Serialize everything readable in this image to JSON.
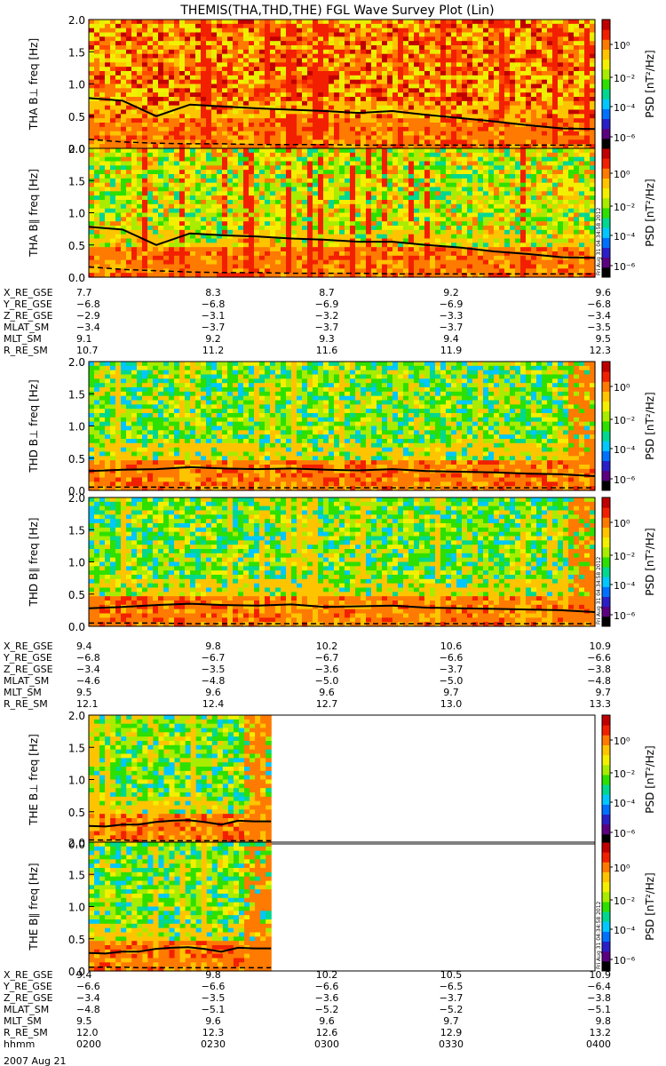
{
  "title": "THEMIS(THA,THD,THE) FGL Wave Survey Plot (Lin)",
  "stamp": "Fri Aug 31 04:34:58 2012",
  "colorbar": {
    "label": "PSD [nT²/Hz]",
    "ticks": [
      "10⁰",
      "10⁻²",
      "10⁻⁴",
      "10⁻⁶"
    ],
    "colors": [
      "#000000",
      "#5b0080",
      "#2a1fc8",
      "#0070ff",
      "#00c8ff",
      "#00d890",
      "#2de000",
      "#a8ec00",
      "#f2f000",
      "#ffc400",
      "#ff7a00",
      "#f22000",
      "#c00000"
    ]
  },
  "chart_data": [
    {
      "type": "heatmap",
      "panel": "THA B⊥",
      "ylabel": "THA B⊥  freq [Hz]",
      "ylim": [
        0,
        2.0
      ],
      "yticks": [
        "0.0",
        "0.5",
        "1.0",
        "1.5",
        "2.0"
      ],
      "xlim": [
        0,
        120
      ],
      "coverage": 1.0,
      "intensity": "high",
      "line_freq": [
        0.78,
        0.74,
        0.5,
        0.68,
        0.65,
        0.62,
        0.6,
        0.58,
        0.55,
        0.58,
        0.52,
        0.47,
        0.42,
        0.36,
        0.31,
        0.3
      ],
      "dashed_freq": [
        0.14,
        0.1,
        0.08,
        0.07,
        0.07,
        0.06,
        0.06,
        0.06,
        0.05,
        0.05,
        0.05,
        0.05,
        0.05,
        0.05,
        0.05,
        0.05
      ]
    },
    {
      "type": "heatmap",
      "panel": "THA B∥",
      "ylabel": "THA B∥  freq [Hz]",
      "ylim": [
        0,
        2.0
      ],
      "yticks": [
        "0.0",
        "0.5",
        "1.0",
        "1.5",
        "2.0"
      ],
      "xlim": [
        0,
        120
      ],
      "coverage": 1.0,
      "intensity": "mid",
      "line_freq": [
        0.78,
        0.74,
        0.5,
        0.68,
        0.65,
        0.63,
        0.6,
        0.58,
        0.55,
        0.55,
        0.5,
        0.46,
        0.4,
        0.36,
        0.31,
        0.3
      ],
      "dashed_freq": [
        0.16,
        0.12,
        0.1,
        0.08,
        0.07,
        0.07,
        0.06,
        0.06,
        0.06,
        0.05,
        0.05,
        0.05,
        0.05,
        0.05,
        0.05,
        0.05
      ]
    },
    {
      "type": "heatmap",
      "panel": "THD B⊥",
      "ylabel": "THD B⊥  freq [Hz]",
      "ylim": [
        0,
        2.0
      ],
      "yticks": [
        "0.0",
        "0.5",
        "1.0",
        "1.5",
        "2.0"
      ],
      "xlim": [
        0,
        120
      ],
      "coverage": 1.0,
      "intensity": "low",
      "line_freq": [
        0.3,
        0.32,
        0.33,
        0.36,
        0.34,
        0.33,
        0.34,
        0.32,
        0.31,
        0.33,
        0.3,
        0.29,
        0.28,
        0.26,
        0.25,
        0.22
      ],
      "dashed_freq": [
        0.05,
        0.05,
        0.05,
        0.04,
        0.04,
        0.04,
        0.04,
        0.04,
        0.04,
        0.04,
        0.04,
        0.04,
        0.04,
        0.04,
        0.04,
        0.04
      ]
    },
    {
      "type": "heatmap",
      "panel": "THD B∥",
      "ylabel": "THD B∥  freq [Hz]",
      "ylim": [
        0,
        2.0
      ],
      "yticks": [
        "0.0",
        "0.5",
        "1.0",
        "1.5",
        "2.0"
      ],
      "xlim": [
        0,
        120
      ],
      "coverage": 1.0,
      "intensity": "low",
      "line_freq": [
        0.28,
        0.3,
        0.33,
        0.35,
        0.33,
        0.32,
        0.34,
        0.3,
        0.31,
        0.32,
        0.29,
        0.28,
        0.27,
        0.26,
        0.25,
        0.22
      ],
      "dashed_freq": [
        0.05,
        0.05,
        0.05,
        0.04,
        0.04,
        0.04,
        0.04,
        0.04,
        0.04,
        0.04,
        0.04,
        0.04,
        0.04,
        0.04,
        0.04,
        0.04
      ]
    },
    {
      "type": "heatmap",
      "panel": "THE B⊥",
      "ylabel": "THE B⊥  freq [Hz]",
      "ylim": [
        0,
        2.0
      ],
      "yticks": [
        "0.0",
        "0.5",
        "1.0",
        "1.5",
        "2.0"
      ],
      "xlim": [
        0,
        120
      ],
      "coverage": 0.36,
      "intensity": "low",
      "line_freq": [
        0.28,
        0.27,
        0.3,
        0.3,
        0.34,
        0.36,
        0.37,
        0.34,
        0.3,
        0.36,
        0.35,
        0.35
      ],
      "dashed_freq": [
        0.06,
        0.06,
        0.06,
        0.05,
        0.05,
        0.05,
        0.05,
        0.05,
        0.05,
        0.05,
        0.05,
        0.05
      ]
    },
    {
      "type": "heatmap",
      "panel": "THE B∥",
      "ylabel": "THE B∥  freq [Hz]",
      "ylim": [
        0,
        2.0
      ],
      "yticks": [
        "0.0",
        "0.5",
        "1.0",
        "1.5",
        "2.0"
      ],
      "xlim": [
        0,
        120
      ],
      "coverage": 0.36,
      "intensity": "low",
      "line_freq": [
        0.28,
        0.27,
        0.3,
        0.3,
        0.34,
        0.36,
        0.37,
        0.34,
        0.3,
        0.36,
        0.35,
        0.35
      ],
      "dashed_freq": [
        0.06,
        0.06,
        0.06,
        0.05,
        0.05,
        0.05,
        0.05,
        0.05,
        0.05,
        0.05,
        0.05,
        0.05
      ]
    }
  ],
  "ephemeris": [
    {
      "rows": [
        {
          "label": "X_RE_GSE",
          "values": [
            "7.7",
            "8.3",
            "8.7",
            "9.2",
            "9.6"
          ]
        },
        {
          "label": "Y_RE_GSE",
          "values": [
            "−6.8",
            "−6.8",
            "−6.9",
            "−6.9",
            "−6.8"
          ]
        },
        {
          "label": "Z_RE_GSE",
          "values": [
            "−2.9",
            "−3.1",
            "−3.2",
            "−3.3",
            "−3.4"
          ]
        },
        {
          "label": "MLAT_SM",
          "values": [
            "−3.4",
            "−3.7",
            "−3.7",
            "−3.7",
            "−3.5"
          ]
        },
        {
          "label": "MLT_SM",
          "values": [
            "9.1",
            "9.2",
            "9.3",
            "9.4",
            "9.5"
          ]
        },
        {
          "label": "R_RE_SM",
          "values": [
            "10.7",
            "11.2",
            "11.6",
            "11.9",
            "12.3"
          ]
        }
      ]
    },
    {
      "rows": [
        {
          "label": "X_RE_GSE",
          "values": [
            "9.4",
            "9.8",
            "10.2",
            "10.6",
            "10.9"
          ]
        },
        {
          "label": "Y_RE_GSE",
          "values": [
            "−6.8",
            "−6.7",
            "−6.7",
            "−6.6",
            "−6.6"
          ]
        },
        {
          "label": "Z_RE_GSE",
          "values": [
            "−3.4",
            "−3.5",
            "−3.6",
            "−3.7",
            "−3.8"
          ]
        },
        {
          "label": "MLAT_SM",
          "values": [
            "−4.6",
            "−4.8",
            "−5.0",
            "−5.0",
            "−4.8"
          ]
        },
        {
          "label": "MLT_SM",
          "values": [
            "9.5",
            "9.6",
            "9.6",
            "9.7",
            "9.7"
          ]
        },
        {
          "label": "R_RE_SM",
          "values": [
            "12.1",
            "12.4",
            "12.7",
            "13.0",
            "13.3"
          ]
        }
      ]
    },
    {
      "rows": [
        {
          "label": "X_RE_GSE",
          "values": [
            "9.4",
            "9.8",
            "10.2",
            "10.5",
            "10.9"
          ]
        },
        {
          "label": "Y_RE_GSE",
          "values": [
            "−6.6",
            "−6.6",
            "−6.6",
            "−6.5",
            "−6.4"
          ]
        },
        {
          "label": "Z_RE_GSE",
          "values": [
            "−3.4",
            "−3.5",
            "−3.6",
            "−3.7",
            "−3.8"
          ]
        },
        {
          "label": "MLAT_SM",
          "values": [
            "−4.8",
            "−5.1",
            "−5.2",
            "−5.2",
            "−5.1"
          ]
        },
        {
          "label": "MLT_SM",
          "values": [
            "9.5",
            "9.6",
            "9.6",
            "9.7",
            "9.8"
          ]
        },
        {
          "label": "R_RE_SM",
          "values": [
            "12.0",
            "12.3",
            "12.6",
            "12.9",
            "13.2"
          ]
        },
        {
          "label": "hhmm",
          "values": [
            "0200",
            "0230",
            "0300",
            "0330",
            "0400"
          ]
        }
      ]
    }
  ],
  "date": "2007 Aug 21"
}
